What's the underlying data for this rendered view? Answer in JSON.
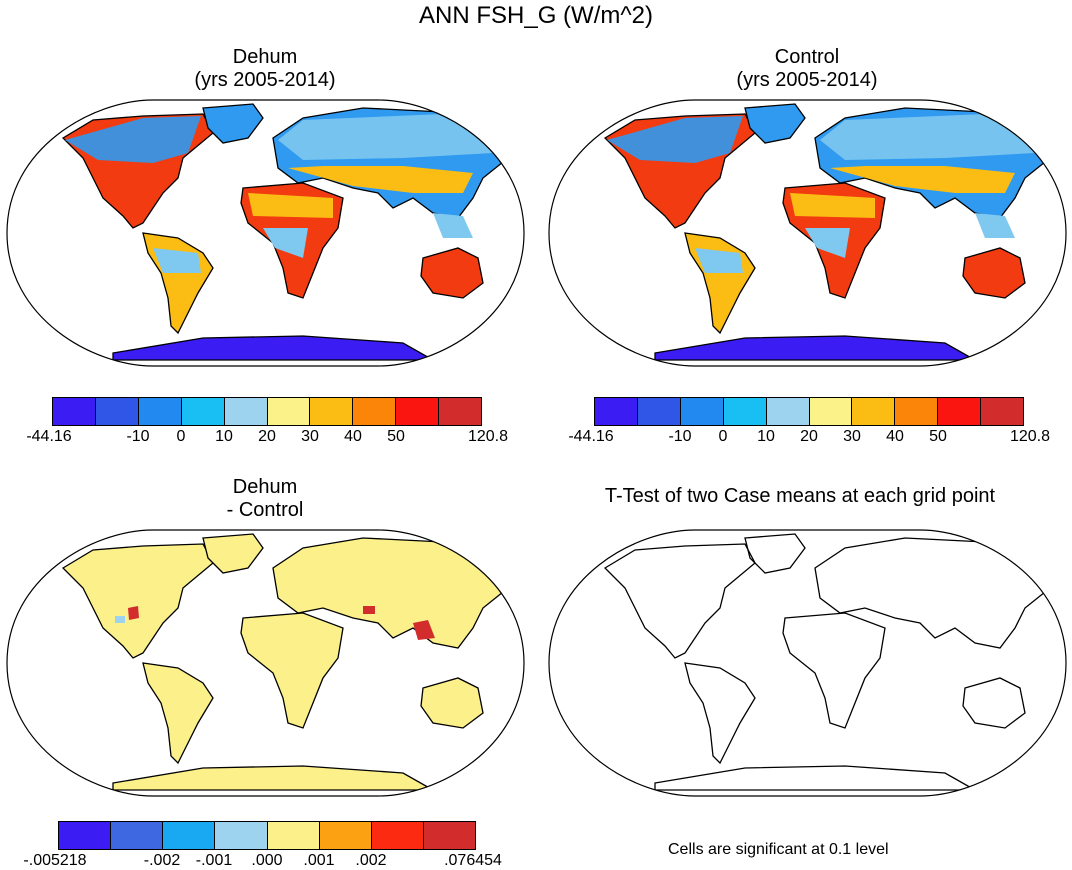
{
  "main_title": "ANN FSH_G (W/m^2)",
  "panels": {
    "dehum": {
      "title_line1": "Dehum",
      "title_line2": "(yrs 2005-2014)"
    },
    "control": {
      "title_line1": "Control",
      "title_line2": "(yrs 2005-2014)"
    },
    "diff": {
      "title_line1": "Dehum",
      "title_line2": "- Control"
    },
    "ttest": {
      "title": "T-Test of two Case means at each grid point",
      "note": "Cells are significant at 0.1 level"
    }
  },
  "colorbar_main": {
    "colors": [
      "#3b1cf2",
      "#2f56e6",
      "#2289f0",
      "#19bff2",
      "#9dd3ee",
      "#fbf28a",
      "#fbbd14",
      "#fb8508",
      "#fb1510",
      "#d22c2c"
    ],
    "labels": [
      "-44.16",
      "-10",
      "0",
      "10",
      "20",
      "30",
      "40",
      "50",
      "120.8"
    ]
  },
  "colorbar_diff": {
    "colors": [
      "#3b1cf2",
      "#3e68e2",
      "#19a9f2",
      "#9dd3ee",
      "#fbf08a",
      "#fba112",
      "#fb2a10",
      "#d22c2c"
    ],
    "labels": [
      ".005218",
      "-.002",
      "-.001",
      ".000",
      ".001",
      ".002",
      ".076454"
    ]
  },
  "map_colors": {
    "ocean": "#ffffff",
    "antarctica": "#3b1cf2",
    "cold": "#2f9af0",
    "cool": "#7fc8f0",
    "warm": "#fbbd14",
    "hot": "#f23b10",
    "diff_fill": "#fbf08a",
    "diff_spot": "#d22c2c",
    "diff_blue": "#9dd3ee"
  }
}
